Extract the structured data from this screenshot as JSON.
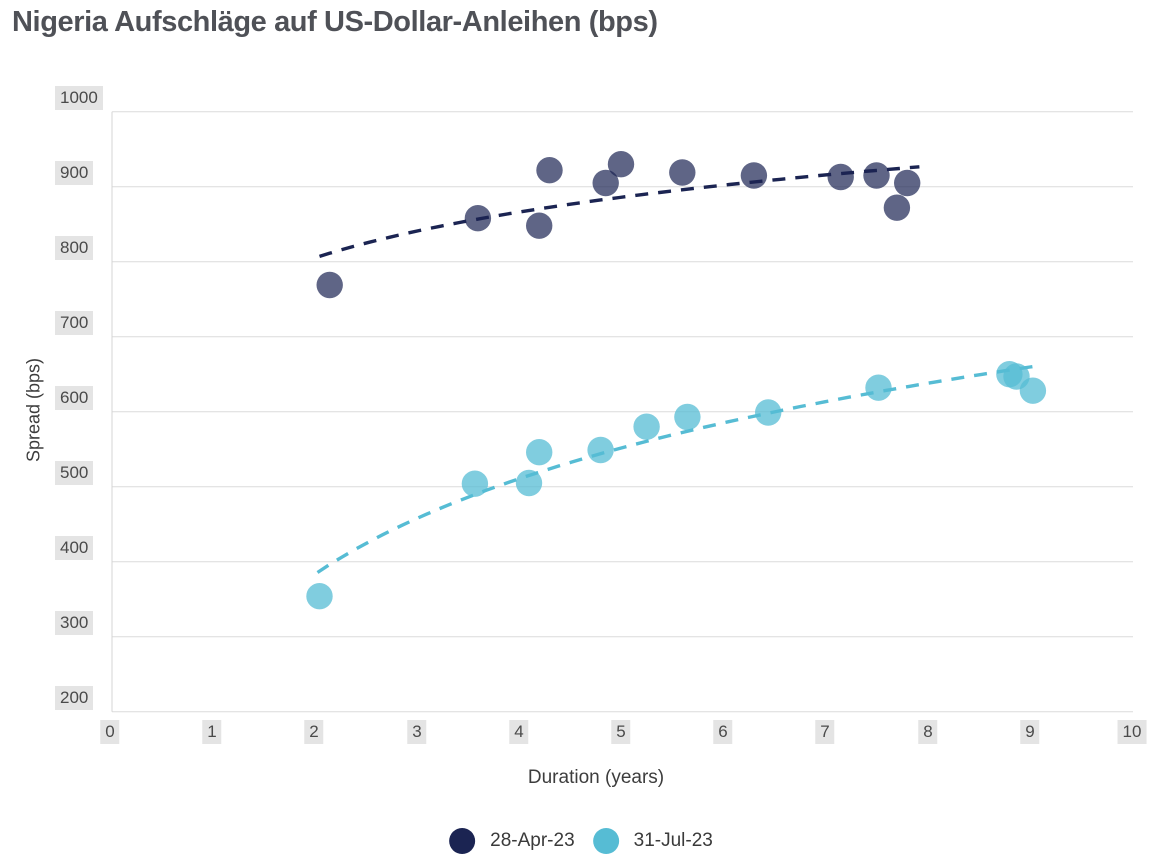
{
  "title": "Nigeria Aufschläge auf US-Dollar-Anleihen (bps)",
  "chart_data": {
    "type": "scatter",
    "title": "Nigeria Aufschläge auf US-Dollar-Anleihen (bps)",
    "xlabel": "Duration (years)",
    "ylabel": "Spread (bps)",
    "xlim": [
      0,
      10
    ],
    "ylim": [
      200,
      1000
    ],
    "x_ticks": [
      0,
      1,
      2,
      3,
      4,
      5,
      6,
      7,
      8,
      9,
      10
    ],
    "y_ticks": [
      200,
      300,
      400,
      500,
      600,
      700,
      800,
      900,
      1000
    ],
    "grid": "horizontal",
    "legend_position": "bottom-center",
    "trend_type": "logarithmic-dashed",
    "colors": {
      "gridline": "#dcdcdc",
      "axis_line": "#d4d4d4",
      "tick_label_bg": "#e4e4e4",
      "tick_label_text": "#4a4a4a",
      "title_text": "#4f5157"
    },
    "series": [
      {
        "name": "28-Apr-23",
        "color": "#1b2452",
        "point_fill": "rgba(27,36,82,0.70)",
        "trend_x_range": [
          2.05,
          7.92
        ],
        "points": [
          [
            2.15,
            769
          ],
          [
            3.6,
            858
          ],
          [
            4.2,
            848
          ],
          [
            4.3,
            922
          ],
          [
            4.85,
            905
          ],
          [
            5.0,
            930
          ],
          [
            5.6,
            919
          ],
          [
            6.3,
            915
          ],
          [
            7.15,
            913
          ],
          [
            7.5,
            915
          ],
          [
            7.7,
            872
          ],
          [
            7.8,
            905
          ]
        ]
      },
      {
        "name": "31-Jul-23",
        "color": "#56bcd4",
        "point_fill": "rgba(86,188,212,0.75)",
        "trend_x_range": [
          2.03,
          9.12
        ],
        "points": [
          [
            2.05,
            354
          ],
          [
            3.57,
            504
          ],
          [
            4.1,
            505
          ],
          [
            4.2,
            546
          ],
          [
            4.8,
            549
          ],
          [
            5.25,
            580
          ],
          [
            5.65,
            593
          ],
          [
            6.44,
            599
          ],
          [
            7.52,
            632
          ],
          [
            8.8,
            650
          ],
          [
            8.87,
            647
          ],
          [
            9.03,
            628
          ]
        ]
      }
    ]
  }
}
